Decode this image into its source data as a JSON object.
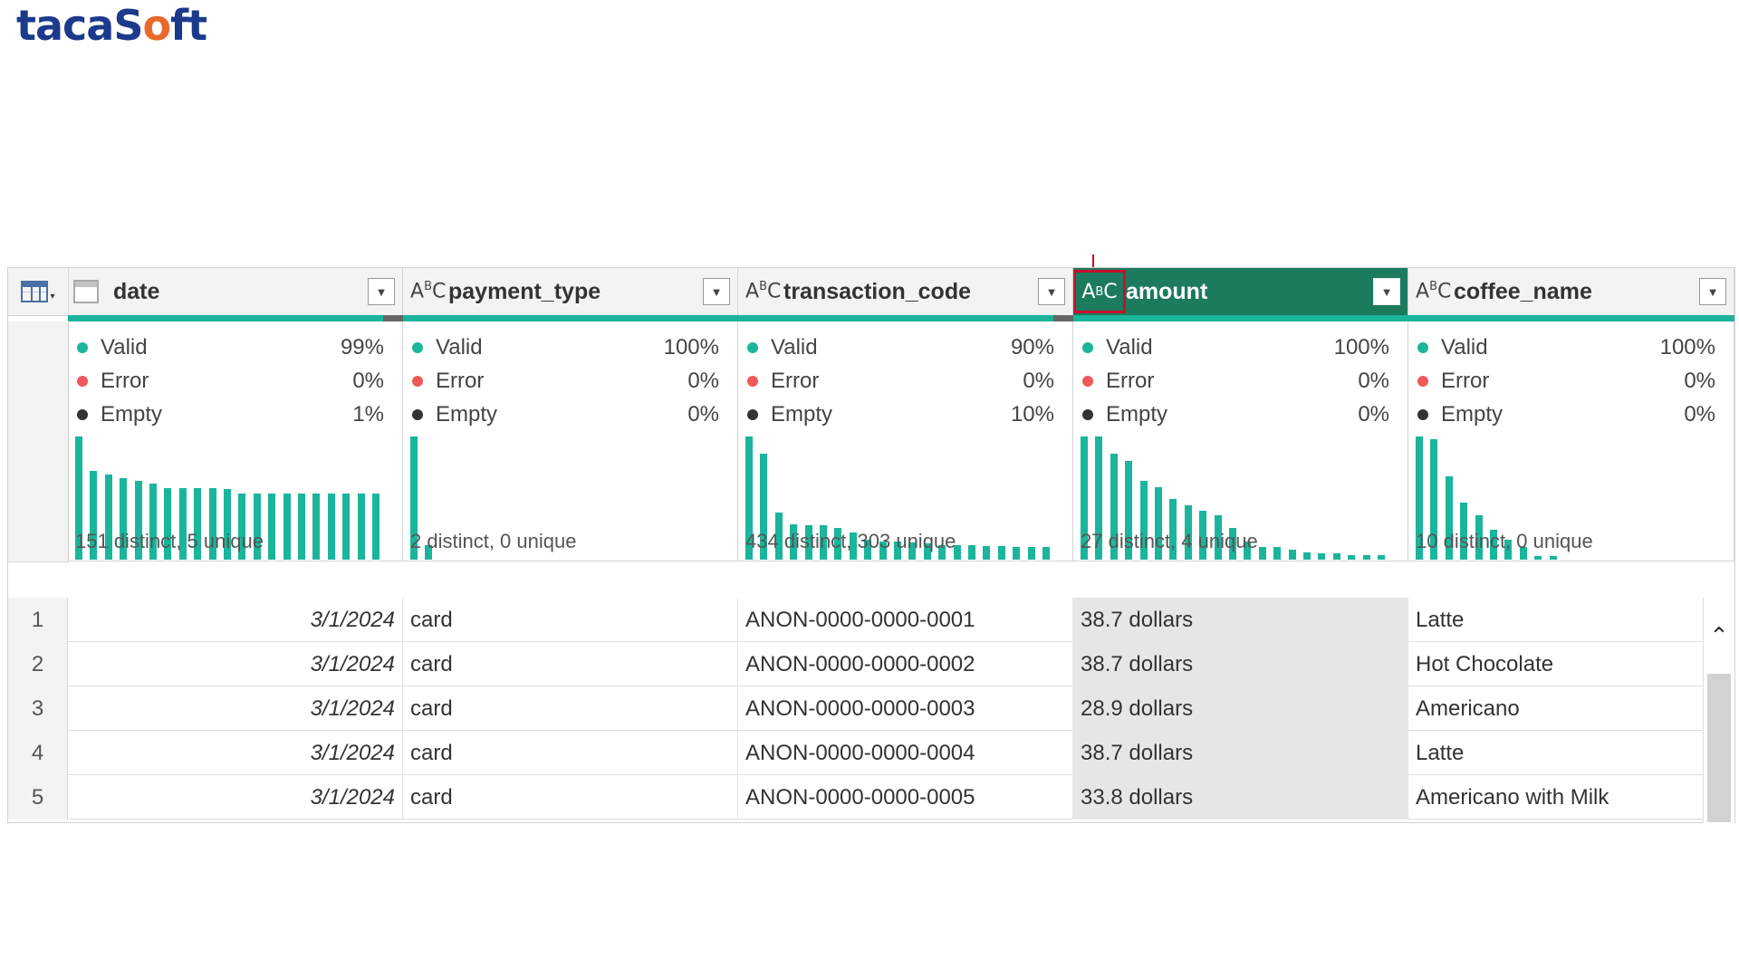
{
  "logo": {
    "pre": "taca",
    "accent": "S",
    "mid": "o",
    "post": "ft"
  },
  "columns": [
    {
      "key": "date",
      "type": "date",
      "title": "date",
      "valid": "99%",
      "error": "0%",
      "empty": "1%",
      "summary": "151 distinct, 5 unique",
      "dist": [
        1.0,
        0.72,
        0.69,
        0.66,
        0.64,
        0.62,
        0.58,
        0.58,
        0.58,
        0.58,
        0.57,
        0.54,
        0.54,
        0.54,
        0.54,
        0.54,
        0.54,
        0.54,
        0.54,
        0.54,
        0.54
      ]
    },
    {
      "key": "payment_type",
      "type": "text",
      "title": "payment_type",
      "valid": "100%",
      "error": "0%",
      "empty": "0%",
      "summary": "2 distinct, 0 unique",
      "dist": [
        1.0,
        0.12
      ]
    },
    {
      "key": "transaction_code",
      "type": "text",
      "title": "transaction_code",
      "valid": "90%",
      "error": "0%",
      "empty": "10%",
      "summary": "434 distinct, 303 unique",
      "dist": [
        1.0,
        0.86,
        0.38,
        0.29,
        0.28,
        0.28,
        0.26,
        0.22,
        0.16,
        0.15,
        0.15,
        0.14,
        0.13,
        0.12,
        0.12,
        0.12,
        0.11,
        0.11,
        0.1,
        0.1,
        0.1
      ]
    },
    {
      "key": "amount",
      "type": "text",
      "title": "amount",
      "selected": true,
      "valid": "100%",
      "error": "0%",
      "empty": "0%",
      "summary": "27 distinct, 4 unique",
      "dist": [
        1.0,
        1.0,
        0.86,
        0.8,
        0.64,
        0.59,
        0.49,
        0.44,
        0.4,
        0.36,
        0.26,
        0.15,
        0.1,
        0.1,
        0.08,
        0.06,
        0.05,
        0.05,
        0.04,
        0.04,
        0.04
      ]
    },
    {
      "key": "coffee_name",
      "type": "text",
      "title": "coffee_name",
      "valid": "100%",
      "error": "0%",
      "empty": "0%",
      "summary": "10 distinct, 0 unique",
      "dist": [
        1.0,
        0.98,
        0.68,
        0.46,
        0.36,
        0.24,
        0.16,
        0.1,
        0.03,
        0.03
      ]
    }
  ],
  "stat_labels": {
    "valid": "Valid",
    "error": "Error",
    "empty": "Empty"
  },
  "colors": {
    "valid": "#1bb59b",
    "error": "#f0585a",
    "empty": "#333333",
    "accent": "#1c7a5e",
    "selection_box": "#c8102e"
  },
  "rows": [
    {
      "n": "1",
      "date": "3/1/2024",
      "payment_type": "card",
      "transaction_code": "ANON-0000-0000-0001",
      "amount": "38.7 dollars",
      "coffee_name": "Latte"
    },
    {
      "n": "2",
      "date": "3/1/2024",
      "payment_type": "card",
      "transaction_code": "ANON-0000-0000-0002",
      "amount": "38.7 dollars",
      "coffee_name": "Hot Chocolate"
    },
    {
      "n": "3",
      "date": "3/1/2024",
      "payment_type": "card",
      "transaction_code": "ANON-0000-0000-0003",
      "amount": "28.9 dollars",
      "coffee_name": "Americano"
    },
    {
      "n": "4",
      "date": "3/1/2024",
      "payment_type": "card",
      "transaction_code": "ANON-0000-0000-0004",
      "amount": "38.7 dollars",
      "coffee_name": "Latte"
    },
    {
      "n": "5",
      "date": "3/1/2024",
      "payment_type": "card",
      "transaction_code": "ANON-0000-0000-0005",
      "amount": "33.8 dollars",
      "coffee_name": "Americano with Milk"
    }
  ]
}
